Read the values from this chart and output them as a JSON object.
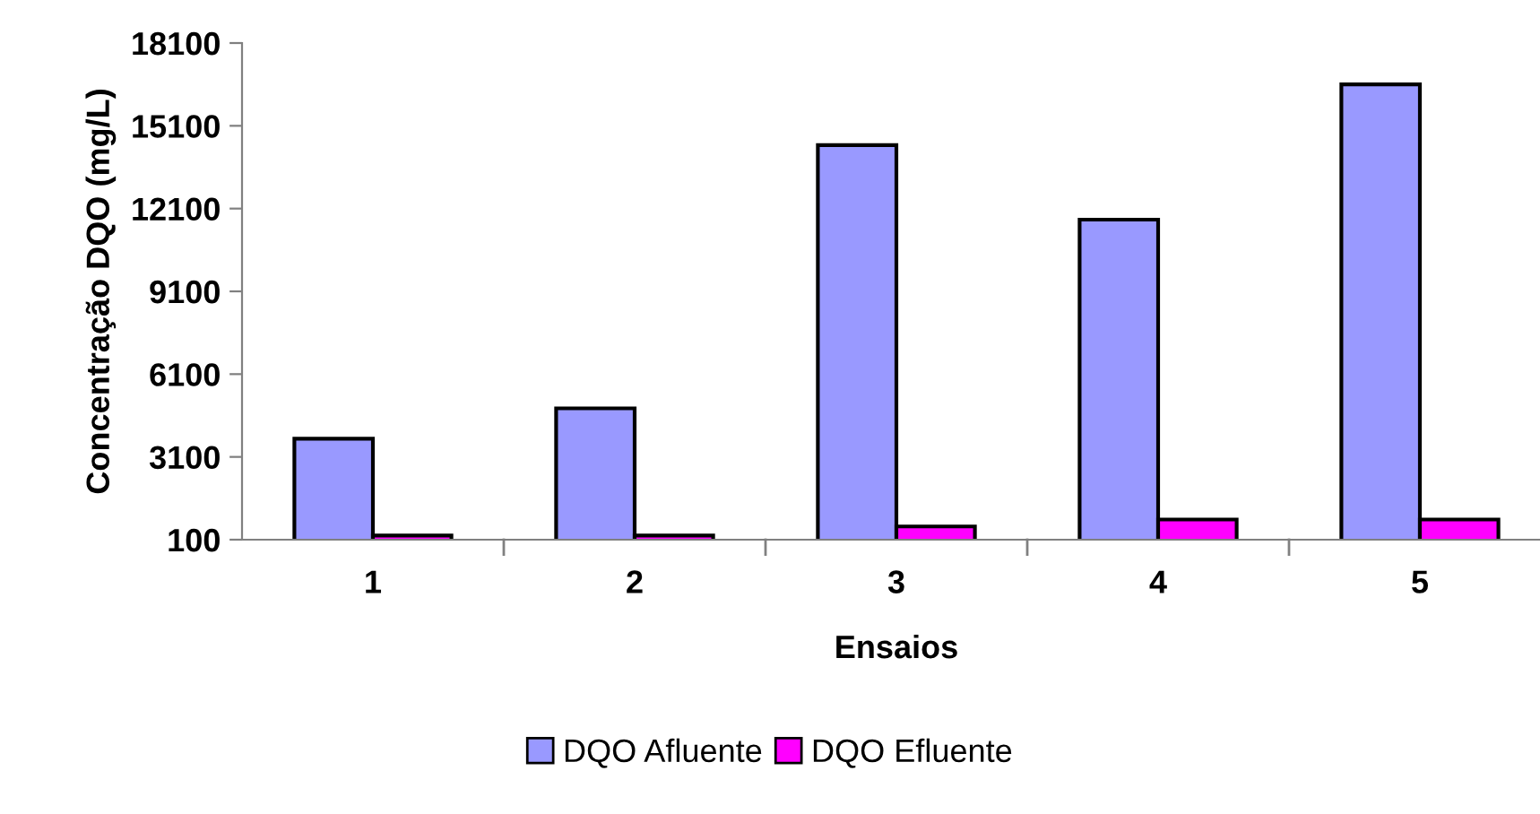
{
  "chart_data": {
    "type": "bar",
    "xlabel": "Ensaios",
    "ylabel": "Concentração DQO (mg/L)",
    "categories": [
      "1",
      "2",
      "3",
      "4",
      "5"
    ],
    "series": [
      {
        "name": "DQO Afluente",
        "color": "#9999ff",
        "values": [
          3760,
          4860,
          14400,
          11700,
          16600
        ]
      },
      {
        "name": "DQO Efluente",
        "color": "#ff00ff",
        "values": [
          250,
          250,
          580,
          830,
          830
        ]
      }
    ],
    "ylim": [
      100,
      18100
    ],
    "yticks": [
      100,
      3100,
      6100,
      9100,
      12100,
      15100,
      18100
    ],
    "grid": false,
    "legend": "bottom"
  }
}
